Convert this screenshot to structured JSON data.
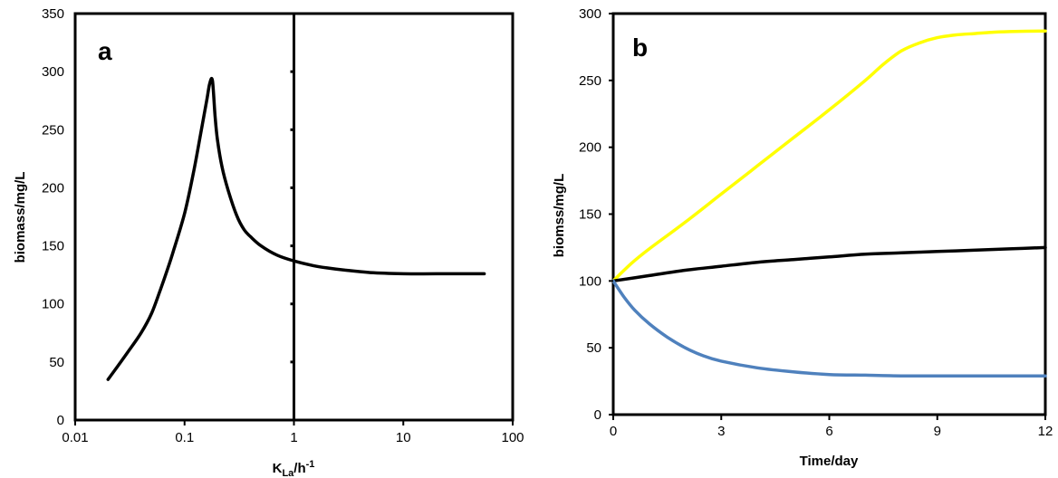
{
  "chart_data": [
    {
      "type": "line",
      "panel_label": "a",
      "title": "",
      "xlabel": "K",
      "xlabel_sub": "La",
      "xlabel_tail": "/h",
      "xlabel_sup": "-1",
      "ylabel": "biomass/mg/L",
      "xscale": "log",
      "xlim": [
        0.01,
        100
      ],
      "ylim": [
        0,
        350
      ],
      "x_ticks": [
        0.01,
        0.1,
        1,
        10,
        100
      ],
      "x_tick_labels": [
        "0.01",
        "0.1",
        "1",
        "10",
        "100"
      ],
      "y_ticks": [
        0,
        50,
        100,
        150,
        200,
        250,
        300,
        350
      ],
      "y_tick_labels": [
        "0",
        "50",
        "100",
        "150",
        "200",
        "250",
        "300",
        "350"
      ],
      "vertical_reference_line_x": 1,
      "grid": false,
      "series": [
        {
          "color": "#000000",
          "x": [
            0.02,
            0.03,
            0.04,
            0.05,
            0.06,
            0.07,
            0.08,
            0.1,
            0.12,
            0.14,
            0.16,
            0.17,
            0.18,
            0.19,
            0.2,
            0.22,
            0.25,
            0.3,
            0.35,
            0.4,
            0.5,
            0.7,
            1,
            1.5,
            2,
            3,
            5,
            10,
            20,
            55
          ],
          "y": [
            35,
            58,
            75,
            92,
            112,
            130,
            147,
            178,
            212,
            246,
            276,
            290,
            292,
            262,
            241,
            218,
            198,
            176,
            164,
            158,
            150,
            142,
            137,
            133,
            131,
            129,
            127,
            126,
            126,
            126
          ]
        }
      ]
    },
    {
      "type": "line",
      "panel_label": "b",
      "title": "",
      "xlabel": "Time/day",
      "ylabel": "biomss/mg/L",
      "xlim": [
        0,
        12
      ],
      "ylim": [
        0,
        300
      ],
      "x_ticks": [
        0,
        3,
        6,
        9,
        12
      ],
      "x_tick_labels": [
        "0",
        "3",
        "6",
        "9",
        "12"
      ],
      "y_ticks": [
        0,
        50,
        100,
        150,
        200,
        250,
        300
      ],
      "y_tick_labels": [
        "0",
        "50",
        "100",
        "150",
        "200",
        "250",
        "300"
      ],
      "grid": false,
      "series": [
        {
          "color": "#ffff00",
          "x": [
            0,
            0.5,
            1,
            2,
            3,
            4,
            5,
            6,
            7,
            7.5,
            8,
            8.5,
            9,
            9.5,
            10,
            10.5,
            11,
            12
          ],
          "y": [
            100,
            113,
            124,
            144,
            165,
            186,
            207,
            228,
            250,
            262,
            272,
            278,
            282,
            284,
            285,
            286,
            286.5,
            287
          ]
        },
        {
          "color": "#000000",
          "x": [
            0,
            1,
            2,
            3,
            4,
            5,
            6,
            7,
            8,
            9,
            10,
            11,
            12
          ],
          "y": [
            100,
            104,
            108,
            111,
            114,
            116,
            118,
            120,
            121,
            122,
            123,
            124,
            125
          ]
        },
        {
          "color": "#4f81bd",
          "x": [
            0,
            0.3,
            0.6,
            1,
            1.5,
            2,
            2.5,
            3,
            4,
            5,
            6,
            7,
            8,
            9,
            10,
            11,
            12
          ],
          "y": [
            100,
            88,
            78,
            68,
            58,
            50,
            44,
            40,
            35,
            32,
            30,
            29.5,
            29,
            29,
            29,
            29,
            29
          ]
        }
      ]
    }
  ]
}
